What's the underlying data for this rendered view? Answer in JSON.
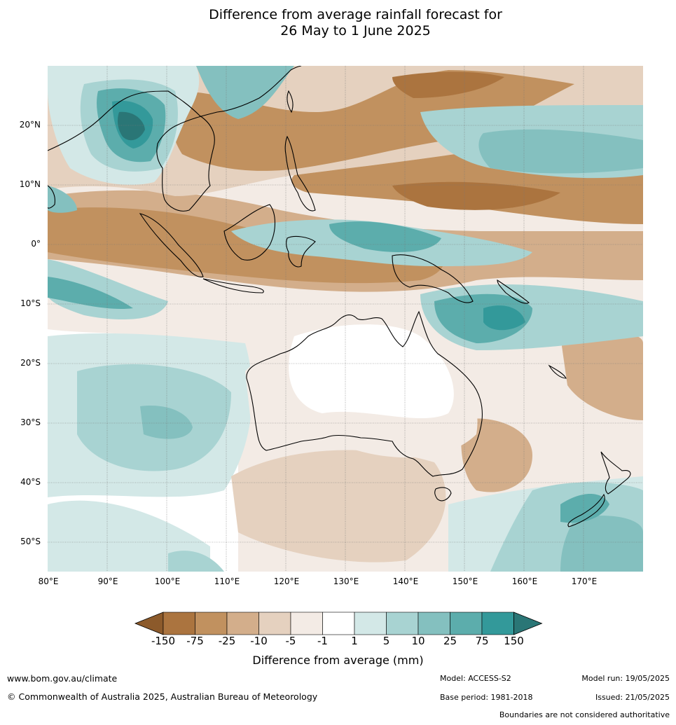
{
  "title_line1": "Difference from average rainfall forecast for",
  "title_line2": "26 May to 1 June 2025",
  "lat_labels": [
    "20°N",
    "10°N",
    "0°",
    "10°S",
    "20°S",
    "30°S",
    "40°S",
    "50°S"
  ],
  "lon_labels": [
    "80°E",
    "90°E",
    "100°E",
    "110°E",
    "120°E",
    "130°E",
    "140°E",
    "150°E",
    "160°E",
    "170°E"
  ],
  "colorbar": {
    "title": "Difference from average (mm)",
    "ticks": [
      "-150",
      "-75",
      "-25",
      "-10",
      "-5",
      "-1",
      "1",
      "5",
      "10",
      "25",
      "75",
      "150"
    ],
    "colors": [
      "#8c5a2b",
      "#ab743f",
      "#c1915f",
      "#d3ae8b",
      "#e5d1bf",
      "#f3ebe5",
      "#ffffff",
      "#d3e8e7",
      "#a8d3d2",
      "#84c0bf",
      "#5cadac",
      "#33999a",
      "#2a7676"
    ]
  },
  "footer": {
    "website": "www.bom.gov.au/climate",
    "copyright": "© Commonwealth of Australia 2025, Australian Bureau of Meteorology",
    "model": "Model: ACCESS-S2",
    "base_period": "Base period: 1981-2018",
    "model_run": "Model run: 19/05/2025",
    "issued": "Issued: 21/05/2025",
    "disclaimer": "Boundaries are not considered authoritative"
  }
}
